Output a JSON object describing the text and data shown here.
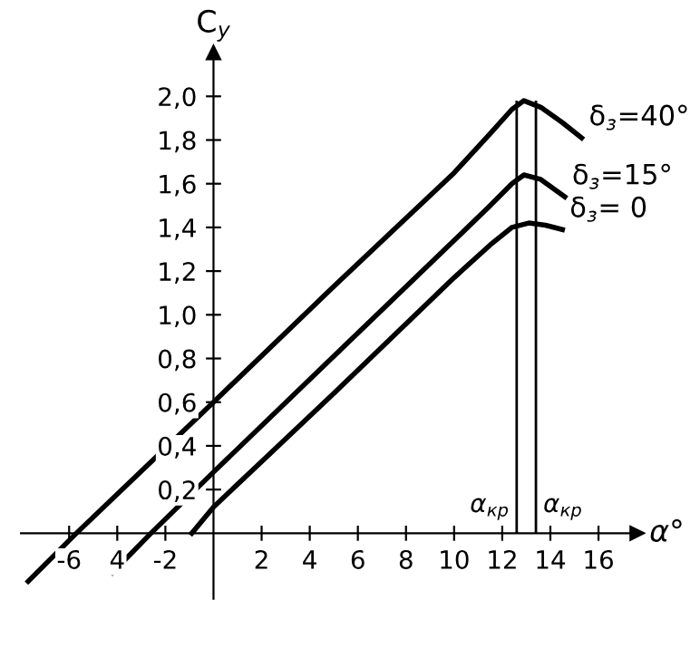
{
  "chart_data": {
    "type": "line",
    "xlabel": "α°",
    "ylabel": "C$_{y}$",
    "xlim": [
      -8,
      17.6
    ],
    "ylim": [
      -0.3,
      2.2
    ],
    "xticks": [
      -6,
      {
        "value": -4,
        "label": "4"
      },
      -2,
      2,
      4,
      6,
      8,
      10,
      12,
      14,
      16
    ],
    "yticks": [
      {
        "value": 0.2,
        "label": "0,2"
      },
      {
        "value": 0.4,
        "label": "0,4"
      },
      {
        "value": 0.6,
        "label": "0,6"
      },
      {
        "value": 0.8,
        "label": "0,8"
      },
      {
        "value": 1.0,
        "label": "1,0"
      },
      {
        "value": 1.2,
        "label": "1,2"
      },
      {
        "value": 1.4,
        "label": "1,4"
      },
      {
        "value": 1.6,
        "label": "1,6"
      },
      {
        "value": 1.8,
        "label": "1,8"
      },
      {
        "value": 2.0,
        "label": "2,0"
      }
    ],
    "grid": false,
    "legend": false,
    "marker": "none",
    "line_style": "solid",
    "series": [
      {
        "name": "δ$_{з}$=40°",
        "color": "#000000",
        "x": [
          -7.7,
          -5.7,
          0,
          5,
          10,
          11.5,
          12.4,
          12.9,
          13.6,
          14.5,
          15.3
        ],
        "values": [
          -0.22,
          0,
          0.6,
          1.13,
          1.65,
          1.83,
          1.94,
          1.98,
          1.95,
          1.88,
          1.81
        ]
      },
      {
        "name": "δ$_{з}$=15°",
        "color": "#000000",
        "x": [
          -4.2,
          -2.6,
          0,
          5,
          10,
          11.5,
          12.4,
          12.9,
          13.6,
          14.6
        ],
        "values": [
          -0.18,
          0,
          0.28,
          0.81,
          1.34,
          1.5,
          1.6,
          1.64,
          1.62,
          1.54
        ]
      },
      {
        "name": "δ$_{з}$= 0",
        "color": "#000000",
        "x": [
          -0.9,
          0,
          5,
          10,
          11.5,
          12.4,
          13.1,
          13.8,
          14.5
        ],
        "values": [
          0,
          0.12,
          0.64,
          1.17,
          1.32,
          1.4,
          1.42,
          1.41,
          1.39
        ]
      }
    ],
    "ref_lines": [
      {
        "axis": "x",
        "value": 12.6,
        "label": "α$_{кр}$",
        "color": "#000000"
      },
      {
        "axis": "x",
        "value": 13.4,
        "label": "α$_{кр}$",
        "color": "#000000"
      }
    ]
  }
}
